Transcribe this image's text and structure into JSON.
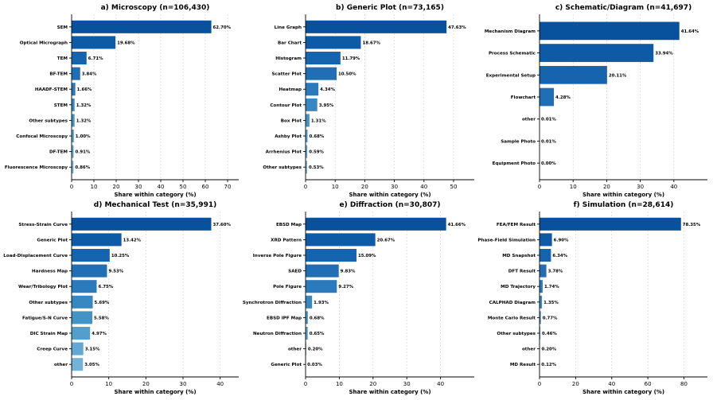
{
  "chart_data": [
    {
      "type": "bar",
      "orientation": "horizontal",
      "title": "a) Microscopy (n=106,430)",
      "xlabel": "Share within category (%)",
      "xlim": [
        0,
        75
      ],
      "xticks": [
        0,
        10,
        20,
        30,
        40,
        50,
        60,
        70
      ],
      "grid": "x dashed",
      "categories": [
        "SEM",
        "Optical Micrograph",
        "TEM",
        "BF-TEM",
        "HAADF-STEM",
        "STEM",
        "Other subtypes",
        "Confocal Microscopy",
        "DF-TEM",
        "Fluorescence Microscopy"
      ],
      "values": [
        62.7,
        19.68,
        6.71,
        3.84,
        1.66,
        1.32,
        1.32,
        1.0,
        0.91,
        0.86
      ],
      "labels": [
        "62.70%",
        "19.68%",
        "6.71%",
        "3.84%",
        "1.66%",
        "1.32%",
        "1.32%",
        "1.00%",
        "0.91%",
        "0.86%"
      ]
    },
    {
      "type": "bar",
      "orientation": "horizontal",
      "title": "b) Generic Plot (n=73,165)",
      "xlabel": "Share within category (%)",
      "xlim": [
        0,
        57
      ],
      "xticks": [
        0,
        10,
        20,
        30,
        40,
        50
      ],
      "grid": "x dashed",
      "categories": [
        "Line Graph",
        "Bar Chart",
        "Histogram",
        "Scatter Plot",
        "Heatmap",
        "Contour Plot",
        "Box Plot",
        "Ashby Plot",
        "Arrhenius Plot",
        "Other subtypes"
      ],
      "values": [
        47.63,
        18.67,
        11.79,
        10.5,
        4.34,
        3.95,
        1.31,
        0.68,
        0.59,
        0.53
      ],
      "labels": [
        "47.63%",
        "18.67%",
        "11.79%",
        "10.50%",
        "4.34%",
        "3.95%",
        "1.31%",
        "0.68%",
        "0.59%",
        "0.53%"
      ]
    },
    {
      "type": "bar",
      "orientation": "horizontal",
      "title": "c) Schematic/Diagram (n=41,697)",
      "xlabel": "Share within category (%)",
      "xlim": [
        0,
        50
      ],
      "xticks": [
        0,
        10,
        20,
        30,
        40
      ],
      "grid": "x dashed",
      "categories": [
        "Mechanism Diagram",
        "Process Schematic",
        "Experimental Setup",
        "Flowchart",
        "other",
        "Sample Photo",
        "Equipment Photo"
      ],
      "values": [
        41.64,
        33.94,
        20.11,
        4.28,
        0.01,
        0.01,
        0.0
      ],
      "labels": [
        "41.64%",
        "33.94%",
        "20.11%",
        "4.28%",
        "0.01%",
        "0.01%",
        "0.00%"
      ]
    },
    {
      "type": "bar",
      "orientation": "horizontal",
      "title": "d) Mechanical Test (n=35,991)",
      "xlabel": "Share within category (%)",
      "xlim": [
        0,
        45
      ],
      "xticks": [
        0,
        10,
        20,
        30,
        40
      ],
      "grid": "x dashed",
      "categories": [
        "Stress-Strain Curve",
        "Generic Plot",
        "Load-Displacement Curve",
        "Hardness Map",
        "Wear/Tribology Plot",
        "Other subtypes",
        "Fatigue/S-N Curve",
        "DIC Strain Map",
        "Creep Curve",
        "other"
      ],
      "values": [
        37.6,
        13.42,
        10.25,
        9.53,
        6.75,
        5.69,
        5.58,
        4.97,
        3.15,
        3.05
      ],
      "labels": [
        "37.60%",
        "13.42%",
        "10.25%",
        "9.53%",
        "6.75%",
        "5.69%",
        "5.58%",
        "4.97%",
        "3.15%",
        "3.05%"
      ]
    },
    {
      "type": "bar",
      "orientation": "horizontal",
      "title": "e) Diffraction (n=30,807)",
      "xlabel": "Share within category (%)",
      "xlim": [
        0,
        50
      ],
      "xticks": [
        0,
        10,
        20,
        30,
        40
      ],
      "grid": "x dashed",
      "categories": [
        "EBSD Map",
        "XRD Pattern",
        "Inverse Pole Figure",
        "SAED",
        "Pole Figure",
        "Synchrotron Diffraction",
        "EBSD IPF Map",
        "Neutron Diffraction",
        "other",
        "Generic Plot"
      ],
      "values": [
        41.66,
        20.67,
        15.09,
        9.83,
        9.27,
        1.93,
        0.68,
        0.65,
        0.2,
        0.03
      ],
      "labels": [
        "41.66%",
        "20.67%",
        "15.09%",
        "9.83%",
        "9.27%",
        "1.93%",
        "0.68%",
        "0.65%",
        "0.20%",
        "0.03%"
      ]
    },
    {
      "type": "bar",
      "orientation": "horizontal",
      "title": "f) Simulation (n=28,614)",
      "xlabel": "Share within category (%)",
      "xlim": [
        0,
        93
      ],
      "xticks": [
        0,
        20,
        40,
        60,
        80
      ],
      "grid": "x dashed",
      "categories": [
        "FEA/FEM Result",
        "Phase-Field Simulation",
        "MD Snapshot",
        "DFT Result",
        "MD Trajectory",
        "CALPHAD Diagram",
        "Monte Carlo Result",
        "Other subtypes",
        "other",
        "MD Result"
      ],
      "values": [
        78.35,
        6.9,
        6.34,
        3.78,
        1.74,
        1.35,
        0.77,
        0.46,
        0.2,
        0.12
      ],
      "labels": [
        "78.35%",
        "6.90%",
        "6.34%",
        "3.78%",
        "1.74%",
        "1.35%",
        "0.77%",
        "0.46%",
        "0.20%",
        "0.12%"
      ]
    }
  ],
  "colors": {
    "ramp": [
      "#08519c",
      "#0d5aa6",
      "#1764ae",
      "#206fb6",
      "#2b7bbc",
      "#3787c0",
      "#4493c6",
      "#539ecd",
      "#63a8d3",
      "#74b3d8"
    ],
    "axis": "#000000",
    "grid": "#cfcfcf"
  }
}
